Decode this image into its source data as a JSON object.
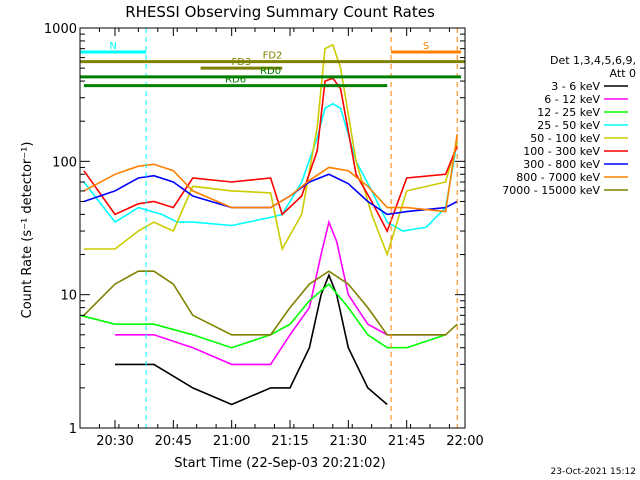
{
  "chart_data": {
    "type": "line",
    "title": "RHESSI Observing Summary Count Rates",
    "xlabel": "Start Time (22-Sep-03 20:21:02)",
    "ylabel": "Count Rate (s⁻¹ detector⁻¹)",
    "yscale": "log",
    "ylim": [
      1,
      1000
    ],
    "xlim": [
      "20:21",
      "22:00"
    ],
    "x_ticks": [
      "20:30",
      "20:45",
      "21:00",
      "21:15",
      "21:30",
      "21:45",
      "22:00"
    ],
    "y_ticks": [
      "1",
      "10",
      "100",
      "1000"
    ],
    "legend_header": [
      "Det 1,3,4,5,6,9,",
      "Att 0"
    ],
    "legend_position": "right",
    "series": [
      {
        "name": "3 - 6 keV",
        "color": "#000000",
        "x": [
          "20:30",
          "20:40",
          "20:50",
          "21:00",
          "21:10",
          "21:15",
          "21:20",
          "21:23",
          "21:25",
          "21:27",
          "21:30",
          "21:35",
          "21:40"
        ],
        "y": [
          3,
          3,
          2,
          1.5,
          2,
          2,
          4,
          10,
          14,
          10,
          4,
          2,
          1.5
        ]
      },
      {
        "name": "6 - 12 keV",
        "color": "#ff00ff",
        "x": [
          "20:30",
          "20:40",
          "20:50",
          "21:00",
          "21:10",
          "21:15",
          "21:20",
          "21:23",
          "21:25",
          "21:27",
          "21:30",
          "21:35",
          "21:40",
          "21:45",
          "21:55"
        ],
        "y": [
          5,
          5,
          4,
          3,
          3,
          5,
          8,
          20,
          35,
          25,
          10,
          6,
          5,
          5,
          5
        ]
      },
      {
        "name": "12 - 25 keV",
        "color": "#00ff00",
        "x": [
          "20:21",
          "20:30",
          "20:40",
          "20:50",
          "21:00",
          "21:10",
          "21:15",
          "21:20",
          "21:25",
          "21:30",
          "21:35",
          "21:40",
          "21:45",
          "21:55"
        ],
        "y": [
          7,
          6,
          6,
          5,
          4,
          5,
          6,
          9,
          12,
          8,
          5,
          4,
          4,
          5
        ]
      },
      {
        "name": "25 - 50 keV",
        "color": "#00ffff",
        "x": [
          "20:22",
          "20:30",
          "20:36",
          "20:42",
          "20:46",
          "20:50",
          "21:00",
          "21:10",
          "21:13",
          "21:18",
          "21:22",
          "21:24",
          "21:26",
          "21:28",
          "21:32",
          "21:36",
          "21:40",
          "21:44",
          "21:50",
          "21:55",
          "21:58"
        ],
        "y": [
          70,
          35,
          45,
          40,
          35,
          35,
          33,
          38,
          40,
          70,
          150,
          250,
          270,
          250,
          100,
          60,
          35,
          30,
          32,
          45,
          140
        ]
      },
      {
        "name": "50 - 100 keV",
        "color": "#cccc00",
        "x": [
          "20:22",
          "20:30",
          "20:36",
          "20:40",
          "20:45",
          "20:50",
          "21:00",
          "21:10",
          "21:13",
          "21:18",
          "21:22",
          "21:24",
          "21:26",
          "21:28",
          "21:32",
          "21:36",
          "21:40",
          "21:45",
          "21:55",
          "21:58"
        ],
        "y": [
          22,
          22,
          30,
          35,
          30,
          65,
          60,
          58,
          22,
          40,
          180,
          700,
          750,
          500,
          100,
          40,
          20,
          60,
          70,
          140
        ]
      },
      {
        "name": "100 - 300 keV",
        "color": "#ff0000",
        "x": [
          "20:22",
          "20:30",
          "20:36",
          "20:40",
          "20:45",
          "20:50",
          "21:00",
          "21:10",
          "21:13",
          "21:18",
          "21:22",
          "21:24",
          "21:26",
          "21:28",
          "21:32",
          "21:36",
          "21:40",
          "21:45",
          "21:55",
          "21:58"
        ],
        "y": [
          85,
          40,
          48,
          50,
          45,
          75,
          70,
          75,
          40,
          55,
          120,
          400,
          420,
          350,
          80,
          50,
          30,
          75,
          80,
          130
        ]
      },
      {
        "name": "300 - 800 keV",
        "color": "#0000ff",
        "x": [
          "20:22",
          "20:30",
          "20:36",
          "20:40",
          "20:45",
          "20:50",
          "21:00",
          "21:10",
          "21:15",
          "21:20",
          "21:25",
          "21:30",
          "21:35",
          "21:40",
          "21:45",
          "21:55",
          "21:58"
        ],
        "y": [
          50,
          60,
          75,
          78,
          70,
          55,
          45,
          45,
          55,
          70,
          80,
          68,
          50,
          40,
          42,
          45,
          50
        ]
      },
      {
        "name": "800 - 7000 keV",
        "color": "#ff8000",
        "x": [
          "20:22",
          "20:30",
          "20:36",
          "20:40",
          "20:45",
          "20:50",
          "21:00",
          "21:10",
          "21:15",
          "21:20",
          "21:25",
          "21:30",
          "21:35",
          "21:40",
          "21:45",
          "21:55",
          "21:58"
        ],
        "y": [
          60,
          80,
          92,
          95,
          85,
          60,
          45,
          45,
          55,
          72,
          90,
          85,
          65,
          45,
          45,
          42,
          160
        ]
      },
      {
        "name": "7000 - 15000 keV",
        "color": "#808000",
        "x": [
          "20:22",
          "20:30",
          "20:36",
          "20:40",
          "20:45",
          "20:50",
          "21:00",
          "21:10",
          "21:15",
          "21:20",
          "21:25",
          "21:30",
          "21:35",
          "21:40",
          "21:45",
          "21:55",
          "21:58"
        ],
        "y": [
          7,
          12,
          15,
          15,
          12,
          7,
          5,
          5,
          8,
          12,
          15,
          12,
          8,
          5,
          5,
          5,
          6
        ]
      }
    ],
    "annotations": [
      {
        "label": "N",
        "color": "#00ffff",
        "start": "20:21",
        "end": "20:38",
        "y": 660
      },
      {
        "label": "S",
        "color": "#ff8000",
        "start": "21:41",
        "end": "21:59",
        "y": 660
      },
      {
        "label": "FD2",
        "color": "#808000",
        "start": "20:21",
        "end": "22:00",
        "y": 560
      },
      {
        "label": "FD3",
        "color": "#808000",
        "start": "20:52",
        "end": "21:13",
        "y": 500
      },
      {
        "label": "RD0",
        "color": "#008000",
        "start": "20:21",
        "end": "21:59",
        "y": 430
      },
      {
        "label": "RD6",
        "color": "#008000",
        "start": "20:22",
        "end": "21:40",
        "y": 370
      }
    ],
    "segment_breaks": {
      "annotation_colors": {
        "N": "#00ffff",
        "S": "#ff8000"
      },
      "breaks_N": [
        "20:38"
      ],
      "breaks_S": [
        "21:41",
        "21:58"
      ]
    },
    "grid": false
  },
  "footer": {
    "timestamp": "23-Oct-2021 15:12"
  }
}
